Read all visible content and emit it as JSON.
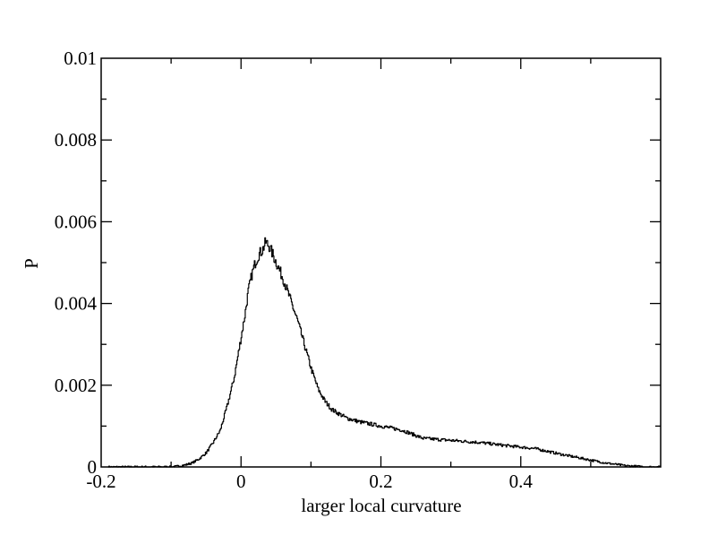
{
  "chart_data": {
    "type": "line",
    "title": "",
    "xlabel": "larger local curvature",
    "ylabel": "P",
    "xlim": [
      -0.2,
      0.6
    ],
    "ylim": [
      0,
      0.01
    ],
    "x_ticks": [
      -0.2,
      0,
      0.2,
      0.4
    ],
    "x_tick_labels": [
      "-0.2",
      "0",
      "0.2",
      "0.4"
    ],
    "y_ticks": [
      0,
      0.002,
      0.004,
      0.006,
      0.008,
      0.01
    ],
    "y_tick_labels": [
      "0",
      "0.002",
      "0.004",
      "0.006",
      "0.008",
      "0.01"
    ],
    "x_minor_step": 0.1,
    "y_minor_step": 0.001,
    "grid": false,
    "line_color": "#000000",
    "series": [
      {
        "x": [
          -0.19,
          -0.18,
          -0.16,
          -0.14,
          -0.12,
          -0.1,
          -0.09,
          -0.08,
          -0.07,
          -0.06,
          -0.05,
          -0.04,
          -0.03,
          -0.02,
          -0.01,
          0.0,
          0.005,
          0.01,
          0.015,
          0.02,
          0.025,
          0.03,
          0.035,
          0.04,
          0.045,
          0.05,
          0.06,
          0.07,
          0.08,
          0.09,
          0.1,
          0.11,
          0.12,
          0.13,
          0.15,
          0.17,
          0.2,
          0.23,
          0.26,
          0.3,
          0.34,
          0.38,
          0.42,
          0.46,
          0.49,
          0.52,
          0.55,
          0.58,
          0.6
        ],
        "y": [
          0.0,
          0.0,
          0.0,
          0.0,
          0.0,
          0.0,
          2e-05,
          5e-05,
          0.0001,
          0.0002,
          0.00035,
          0.0006,
          0.0009,
          0.0015,
          0.0022,
          0.0032,
          0.0037,
          0.0043,
          0.0047,
          0.005,
          0.0052,
          0.0053,
          0.0055,
          0.0054,
          0.0052,
          0.005,
          0.0046,
          0.0041,
          0.0036,
          0.003,
          0.0024,
          0.0019,
          0.0016,
          0.0014,
          0.0012,
          0.0011,
          0.001,
          0.0009,
          0.0007,
          0.00065,
          0.0006,
          0.00052,
          0.00045,
          0.0003,
          0.0002,
          0.0001,
          3e-05,
          0.0,
          0.0
        ]
      }
    ]
  }
}
